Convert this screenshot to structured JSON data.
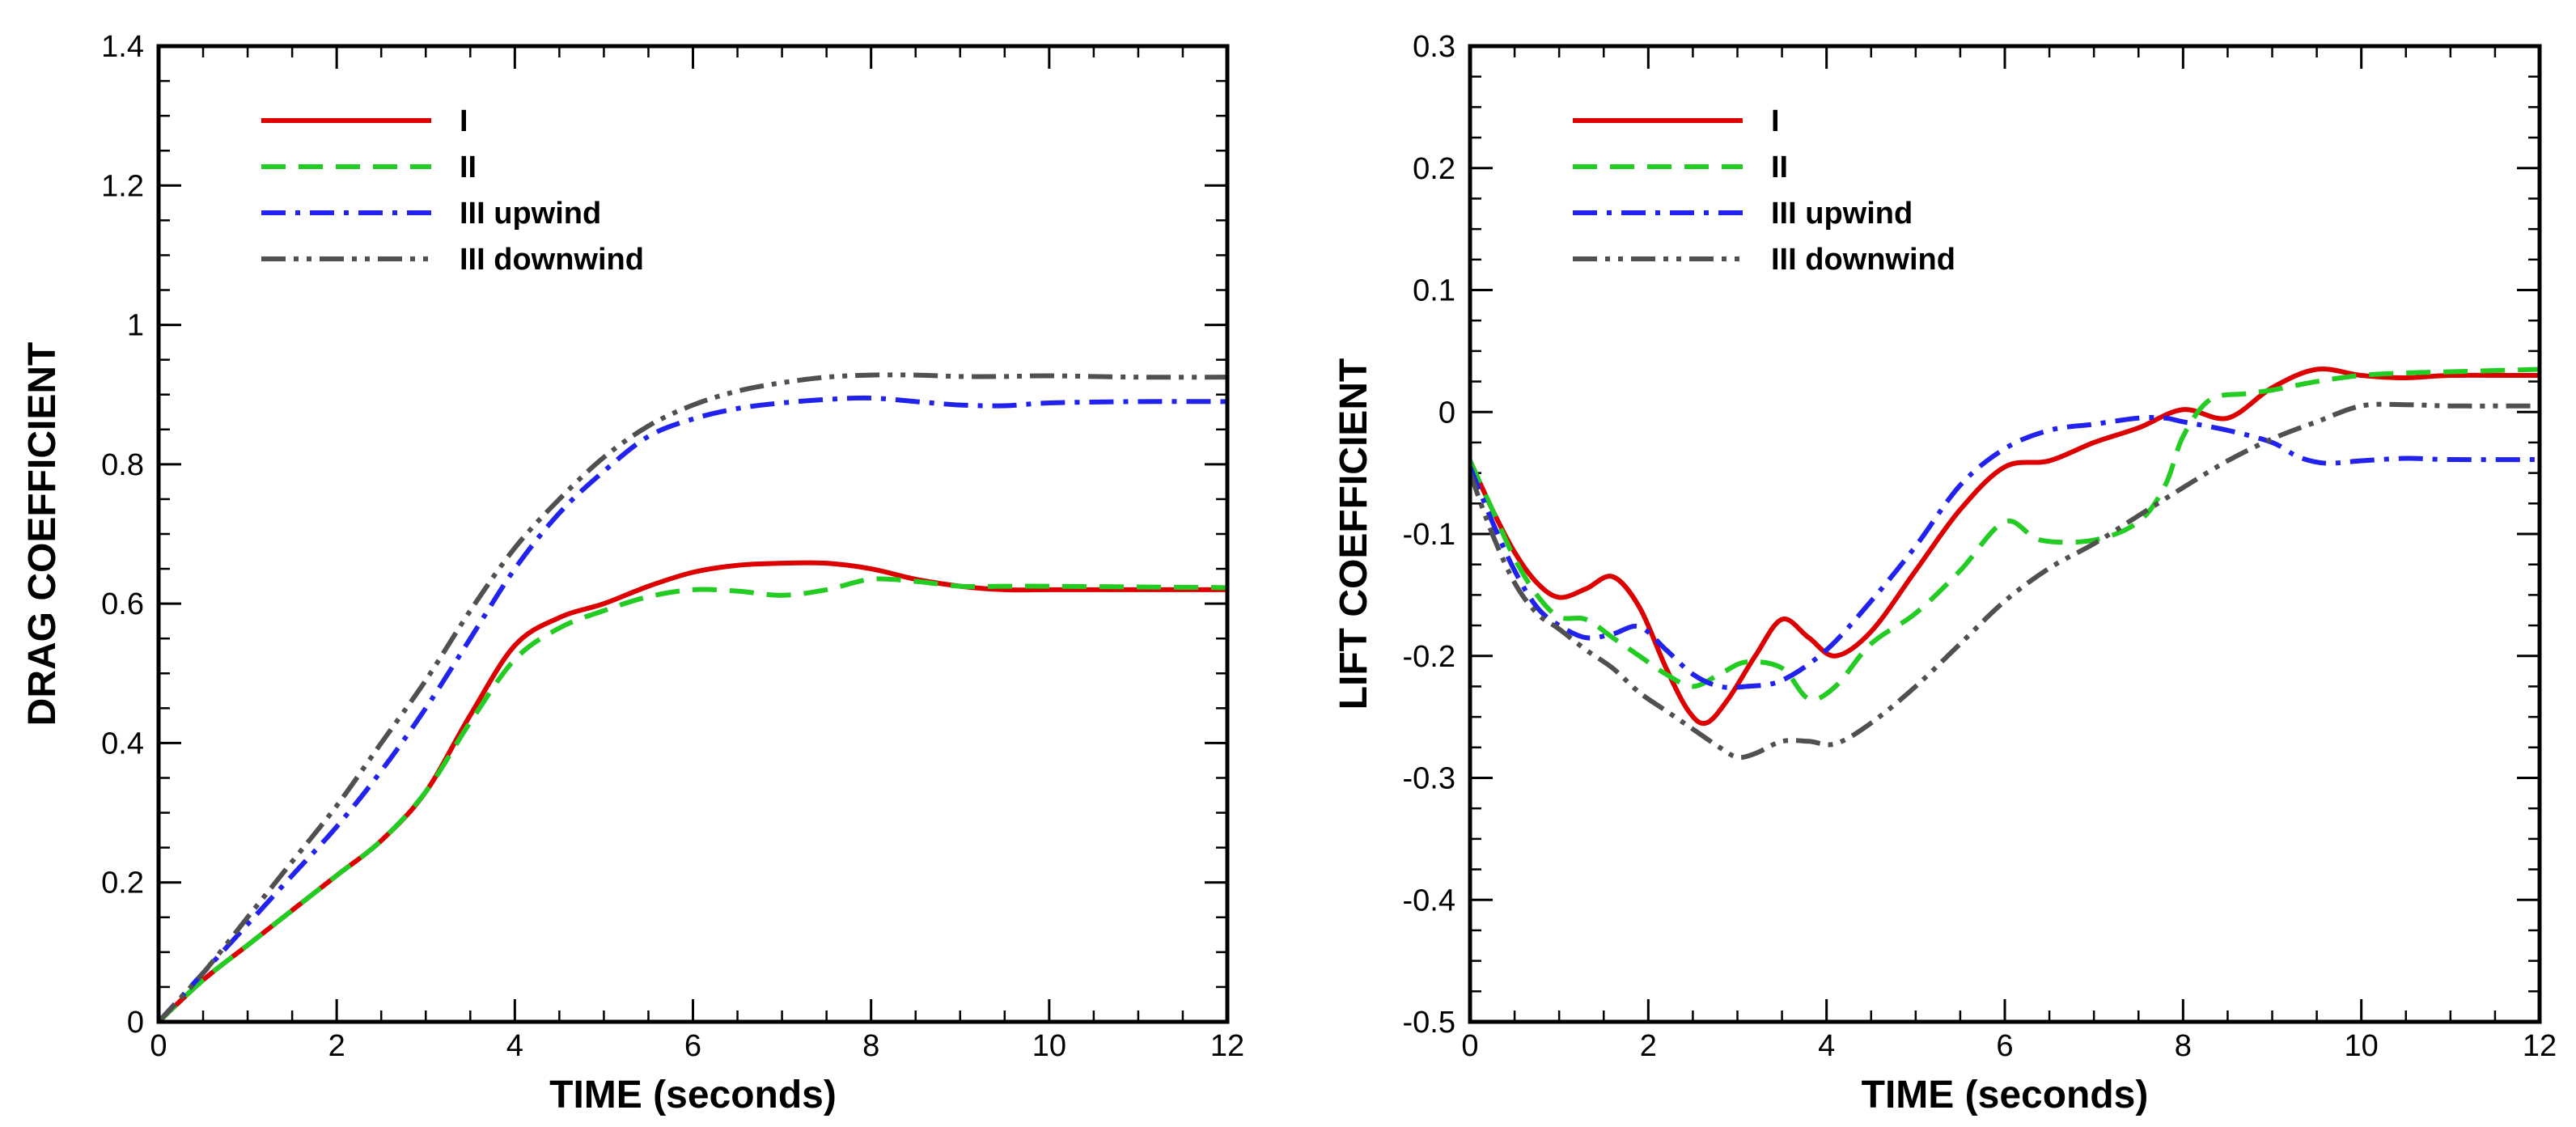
{
  "chart_data": [
    {
      "type": "line",
      "title": "",
      "xlabel": "TIME (seconds)",
      "ylabel": "DRAG COEFFICIENT",
      "xlim": [
        0,
        12
      ],
      "ylim": [
        0,
        1.4
      ],
      "x_ticks": [
        0,
        2,
        4,
        6,
        8,
        10,
        12
      ],
      "x_tick_labels": [
        "0",
        "2",
        "4",
        "6",
        "8",
        "10",
        "12"
      ],
      "y_ticks": [
        0,
        0.2,
        0.4,
        0.6,
        0.8,
        1.0,
        1.2,
        1.4
      ],
      "y_tick_labels": [
        "0",
        "0.2",
        "0.4",
        "0.6",
        "0.8",
        "1",
        "1.2",
        "1.4"
      ],
      "legend_position": "top-left",
      "series": [
        {
          "name": "I",
          "color": "#dd0000",
          "dash": "solid",
          "x": [
            0,
            0.5,
            1,
            1.5,
            2,
            2.5,
            3,
            3.5,
            4,
            4.5,
            5,
            5.5,
            6,
            6.5,
            7,
            7.5,
            8,
            8.5,
            9,
            9.5,
            10,
            11,
            12
          ],
          "y": [
            0,
            0.06,
            0.11,
            0.16,
            0.21,
            0.26,
            0.33,
            0.44,
            0.54,
            0.58,
            0.6,
            0.625,
            0.645,
            0.655,
            0.658,
            0.658,
            0.65,
            0.635,
            0.625,
            0.62,
            0.62,
            0.62,
            0.62
          ]
        },
        {
          "name": "II",
          "color": "#22cc22",
          "dash": "dashed",
          "x": [
            0,
            0.5,
            1,
            1.5,
            2,
            2.5,
            3,
            3.5,
            4,
            4.5,
            5,
            5.5,
            6,
            6.5,
            7,
            7.5,
            8,
            8.5,
            9,
            9.5,
            10,
            11,
            12
          ],
          "y": [
            0,
            0.06,
            0.11,
            0.16,
            0.21,
            0.26,
            0.33,
            0.43,
            0.52,
            0.565,
            0.59,
            0.61,
            0.62,
            0.618,
            0.612,
            0.62,
            0.635,
            0.632,
            0.625,
            0.625,
            0.625,
            0.624,
            0.623
          ]
        },
        {
          "name": "III upwind",
          "color": "#2222ee",
          "dash": "dashdot",
          "x": [
            0,
            0.5,
            1,
            1.5,
            2,
            2.5,
            3,
            3.5,
            4,
            4.5,
            5,
            5.5,
            6,
            6.5,
            7,
            7.5,
            8,
            8.5,
            9,
            9.5,
            10,
            11,
            12
          ],
          "y": [
            0,
            0.07,
            0.14,
            0.21,
            0.28,
            0.36,
            0.45,
            0.55,
            0.65,
            0.73,
            0.79,
            0.84,
            0.865,
            0.88,
            0.888,
            0.893,
            0.895,
            0.89,
            0.885,
            0.884,
            0.888,
            0.89,
            0.89
          ]
        },
        {
          "name": "III downwind",
          "color": "#505050",
          "dash": "dashdotdot",
          "x": [
            0,
            0.5,
            1,
            1.5,
            2,
            2.5,
            3,
            3.5,
            4,
            4.5,
            5,
            5.5,
            6,
            6.5,
            7,
            7.5,
            8,
            8.5,
            9,
            9.5,
            10,
            11,
            12
          ],
          "y": [
            0,
            0.07,
            0.15,
            0.23,
            0.31,
            0.4,
            0.49,
            0.59,
            0.68,
            0.75,
            0.81,
            0.855,
            0.885,
            0.905,
            0.917,
            0.925,
            0.928,
            0.928,
            0.926,
            0.926,
            0.927,
            0.925,
            0.925
          ]
        }
      ]
    },
    {
      "type": "line",
      "title": "",
      "xlabel": "TIME (seconds)",
      "ylabel": "LIFT COEFFICIENT",
      "xlim": [
        0,
        12
      ],
      "ylim": [
        -0.5,
        0.3
      ],
      "x_ticks": [
        0,
        2,
        4,
        6,
        8,
        10,
        12
      ],
      "x_tick_labels": [
        "0",
        "2",
        "4",
        "6",
        "8",
        "10",
        "12"
      ],
      "y_ticks": [
        -0.5,
        -0.4,
        -0.3,
        -0.2,
        -0.1,
        0,
        0.1,
        0.2,
        0.3
      ],
      "y_tick_labels": [
        "-0.5",
        "-0.4",
        "-0.3",
        "-0.2",
        "-0.1",
        "0",
        "0.1",
        "0.2",
        "0.3"
      ],
      "legend_position": "top-left",
      "series": [
        {
          "name": "I",
          "color": "#dd0000",
          "dash": "solid",
          "x": [
            0,
            0.25,
            0.5,
            0.75,
            1,
            1.3,
            1.6,
            1.9,
            2.2,
            2.45,
            2.65,
            2.9,
            3.2,
            3.5,
            3.8,
            4.1,
            4.5,
            5,
            5.5,
            6,
            6.5,
            7,
            7.5,
            8,
            8.5,
            9,
            9.5,
            10,
            10.5,
            11,
            12
          ],
          "y": [
            -0.04,
            -0.08,
            -0.115,
            -0.14,
            -0.152,
            -0.145,
            -0.135,
            -0.16,
            -0.21,
            -0.245,
            -0.255,
            -0.235,
            -0.2,
            -0.17,
            -0.185,
            -0.2,
            -0.18,
            -0.13,
            -0.08,
            -0.045,
            -0.04,
            -0.025,
            -0.013,
            0.002,
            -0.005,
            0.02,
            0.035,
            0.03,
            0.028,
            0.03,
            0.03
          ]
        },
        {
          "name": "II",
          "color": "#22cc22",
          "dash": "dashed",
          "x": [
            0,
            0.25,
            0.5,
            0.75,
            1,
            1.3,
            1.6,
            1.9,
            2.2,
            2.5,
            2.8,
            3.1,
            3.5,
            3.8,
            4.1,
            4.5,
            5,
            5.5,
            6,
            6.4,
            7,
            7.5,
            7.8,
            8,
            8.3,
            8.7,
            9,
            9.5,
            10,
            10.5,
            11,
            12
          ],
          "y": [
            -0.04,
            -0.08,
            -0.12,
            -0.15,
            -0.168,
            -0.17,
            -0.185,
            -0.2,
            -0.215,
            -0.225,
            -0.215,
            -0.205,
            -0.21,
            -0.235,
            -0.225,
            -0.19,
            -0.165,
            -0.13,
            -0.09,
            -0.105,
            -0.105,
            -0.09,
            -0.06,
            -0.02,
            0.01,
            0.015,
            0.018,
            0.025,
            0.03,
            0.032,
            0.033,
            0.035
          ]
        },
        {
          "name": "III upwind",
          "color": "#2222ee",
          "dash": "dashdot",
          "x": [
            0,
            0.25,
            0.5,
            0.75,
            1,
            1.3,
            1.6,
            1.9,
            2.2,
            2.5,
            2.8,
            3.1,
            3.5,
            4,
            4.5,
            5,
            5.5,
            6,
            6.5,
            7,
            7.5,
            7.8,
            8,
            8.5,
            9,
            9.3,
            9.6,
            10,
            10.5,
            11,
            12
          ],
          "y": [
            -0.045,
            -0.09,
            -0.13,
            -0.16,
            -0.175,
            -0.185,
            -0.182,
            -0.176,
            -0.195,
            -0.215,
            -0.225,
            -0.225,
            -0.22,
            -0.195,
            -0.155,
            -0.11,
            -0.06,
            -0.03,
            -0.015,
            -0.01,
            -0.005,
            -0.005,
            -0.008,
            -0.015,
            -0.025,
            -0.037,
            -0.042,
            -0.04,
            -0.038,
            -0.039,
            -0.039
          ]
        },
        {
          "name": "III downwind",
          "color": "#505050",
          "dash": "dashdotdot",
          "x": [
            0,
            0.25,
            0.5,
            0.75,
            1,
            1.3,
            1.6,
            1.9,
            2.2,
            2.5,
            2.8,
            3,
            3.2,
            3.5,
            3.8,
            4.1,
            4.5,
            5,
            5.5,
            6,
            6.5,
            7,
            7.5,
            8,
            8.5,
            9,
            9.5,
            10,
            10.5,
            11,
            12
          ],
          "y": [
            -0.05,
            -0.1,
            -0.14,
            -0.165,
            -0.178,
            -0.195,
            -0.21,
            -0.23,
            -0.245,
            -0.26,
            -0.275,
            -0.283,
            -0.28,
            -0.27,
            -0.27,
            -0.272,
            -0.255,
            -0.225,
            -0.19,
            -0.155,
            -0.128,
            -0.108,
            -0.085,
            -0.062,
            -0.04,
            -0.022,
            -0.008,
            0.005,
            0.006,
            0.005,
            0.005
          ]
        }
      ]
    }
  ]
}
